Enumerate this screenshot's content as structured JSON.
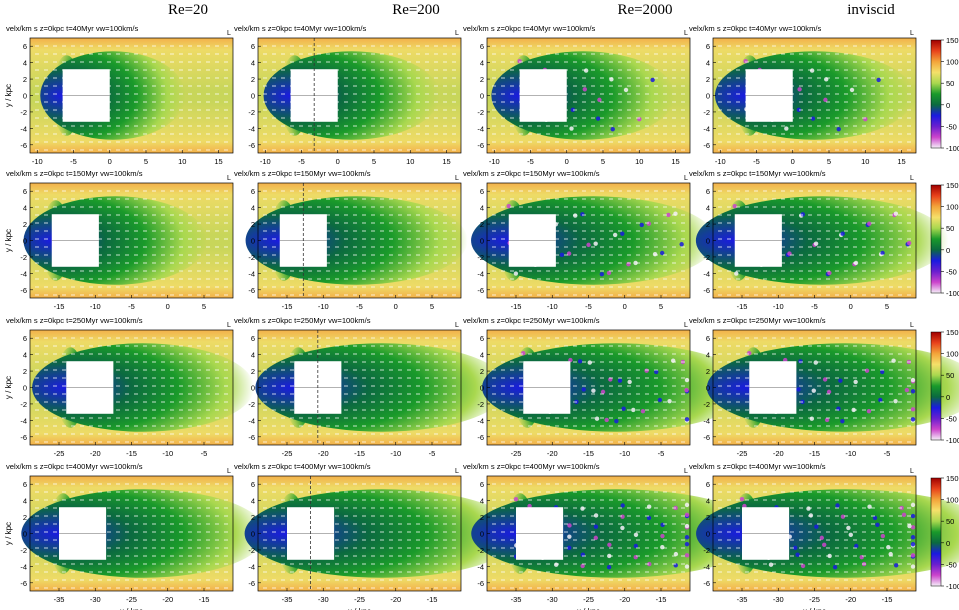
{
  "figure": {
    "column_titles": [
      "Re=20",
      "Re=200",
      "Re=2000",
      "inviscid"
    ],
    "panel_label_prefix": "velx/km s",
    "panel_label_suffix": "z=0kpc",
    "time_labels": [
      "t=40Myr",
      "t=150Myr",
      "t=250Myr",
      "t=400Myr"
    ],
    "velocity_label": "v",
    "velocity_sub": "w",
    "velocity_value": "=100km/s",
    "y_axis_label": "y / kpc",
    "x_axis_label": "x / kpc",
    "y_ticks": [
      "-6",
      "-4",
      "-2",
      "0",
      "2",
      "4",
      "6"
    ],
    "x_ticks_rows": [
      [
        "-10",
        "-5",
        "0",
        "5",
        "10",
        "15"
      ],
      [
        "-15",
        "-10",
        "-5",
        "0",
        "5"
      ],
      [
        "-25",
        "-20",
        "-15",
        "-10",
        "-5"
      ],
      [
        "-35",
        "-30",
        "-25",
        "-20",
        "-15"
      ]
    ],
    "colorbar_ticks": [
      [
        "150",
        "100",
        "50",
        "0",
        "-50",
        "-100"
      ],
      [
        "150",
        "100",
        "50",
        "0",
        "-50",
        "-100"
      ],
      [
        "150",
        "100",
        "50",
        "0",
        "-50",
        "-100"
      ],
      [
        "150",
        "100",
        "50",
        "0",
        "-50",
        "-100"
      ]
    ],
    "colors": {
      "colormap": [
        "#f5f0f8",
        "#cc44cc",
        "#6a1fcf",
        "#1a1ae0",
        "#0b6a40",
        "#1a9a2a",
        "#a9d84f",
        "#f5e06a",
        "#f3a43a",
        "#e8421b",
        "#a00000"
      ],
      "background_flow": "#c8d65a",
      "cloud": "#ffffff",
      "vector": "#ffffff"
    }
  },
  "chart_data": [
    {
      "type": "heatmap",
      "row": 1,
      "column": "Re=20",
      "title": "velx/km s⁻¹ z=0kpc t=40Myr vw=100km/s",
      "xlabel": "",
      "ylabel": "y / kpc",
      "xlim": [
        -11,
        17
      ],
      "ylim": [
        -7,
        7
      ],
      "colorbar_range": [
        -100,
        150
      ]
    },
    {
      "type": "heatmap",
      "row": 1,
      "column": "Re=200",
      "title": "velx/km s⁻¹ z=0kpc t=40Myr vw=100km/s",
      "xlim": [
        -11,
        17
      ],
      "ylim": [
        -7,
        7
      ]
    },
    {
      "type": "heatmap",
      "row": 1,
      "column": "Re=2000",
      "title": "velx/km s⁻¹ z=0kpc t=40Myr vw=100km/s",
      "xlim": [
        -11,
        17
      ],
      "ylim": [
        -7,
        7
      ]
    },
    {
      "type": "heatmap",
      "row": 1,
      "column": "inviscid",
      "title": "velx/km s⁻¹ z=0kpc t=40Myr vw=100km/s",
      "xlim": [
        -11,
        17
      ],
      "ylim": [
        -7,
        7
      ]
    },
    {
      "type": "heatmap",
      "row": 2,
      "column": "Re=20",
      "title": "velx/km s⁻¹ z=0kpc t=150Myr vw=100km/s",
      "ylabel": "y / kpc",
      "xlim": [
        -19,
        9
      ],
      "ylim": [
        -7,
        7
      ],
      "colorbar_range": [
        -100,
        150
      ]
    },
    {
      "type": "heatmap",
      "row": 2,
      "column": "Re=200",
      "title": "velx/km s⁻¹ z=0kpc t=150Myr vw=100km/s",
      "xlim": [
        -19,
        9
      ],
      "ylim": [
        -7,
        7
      ]
    },
    {
      "type": "heatmap",
      "row": 2,
      "column": "Re=2000",
      "title": "velx/km s⁻¹ z=0kpc t=150Myr vw=100km/s",
      "xlim": [
        -19,
        9
      ],
      "ylim": [
        -7,
        7
      ]
    },
    {
      "type": "heatmap",
      "row": 2,
      "column": "inviscid",
      "title": "velx/km s⁻¹ z=0kpc t=150Myr vw=100km/s",
      "xlim": [
        -19,
        9
      ],
      "ylim": [
        -7,
        7
      ]
    },
    {
      "type": "heatmap",
      "row": 3,
      "column": "Re=20",
      "title": "velx/km s⁻¹ z=0kpc t=250Myr vw=100km/s",
      "ylabel": "y / kpc",
      "xlim": [
        -29,
        -1
      ],
      "ylim": [
        -7,
        7
      ],
      "colorbar_range": [
        -100,
        150
      ]
    },
    {
      "type": "heatmap",
      "row": 3,
      "column": "Re=200",
      "title": "velx/km s⁻¹ z=0kpc t=250Myr vw=100km/s",
      "xlim": [
        -29,
        -1
      ],
      "ylim": [
        -7,
        7
      ]
    },
    {
      "type": "heatmap",
      "row": 3,
      "column": "Re=2000",
      "title": "velx/km s⁻¹ z=0kpc t=250Myr vw=100km/s",
      "xlim": [
        -29,
        -1
      ],
      "ylim": [
        -7,
        7
      ]
    },
    {
      "type": "heatmap",
      "row": 3,
      "column": "inviscid",
      "title": "velx/km s⁻¹ z=0kpc t=250Myr vw=100km/s",
      "xlim": [
        -29,
        -1
      ],
      "ylim": [
        -7,
        7
      ]
    },
    {
      "type": "heatmap",
      "row": 4,
      "column": "Re=20",
      "title": "velx/km s⁻¹ z=0kpc t=400Myr vw=100km/s",
      "xlabel": "x / kpc",
      "ylabel": "y / kpc",
      "xlim": [
        -39,
        -11
      ],
      "ylim": [
        -7,
        7
      ],
      "colorbar_range": [
        -100,
        150
      ]
    },
    {
      "type": "heatmap",
      "row": 4,
      "column": "Re=200",
      "title": "velx/km s⁻¹ z=0kpc t=400Myr vw=100km/s",
      "xlabel": "x / kpc",
      "xlim": [
        -39,
        -11
      ],
      "ylim": [
        -7,
        7
      ]
    },
    {
      "type": "heatmap",
      "row": 4,
      "column": "Re=2000",
      "title": "velx/km s⁻¹ z=0kpc t=400Myr vw=100km/s",
      "xlabel": "x / kpc",
      "xlim": [
        -39,
        -11
      ],
      "ylim": [
        -7,
        7
      ]
    },
    {
      "type": "heatmap",
      "row": 4,
      "column": "inviscid",
      "title": "velx/km s⁻¹ z=0kpc t=400Myr vw=100km/s",
      "xlabel": "x / kpc",
      "xlim": [
        -39,
        -11
      ],
      "ylim": [
        -7,
        7
      ]
    }
  ]
}
